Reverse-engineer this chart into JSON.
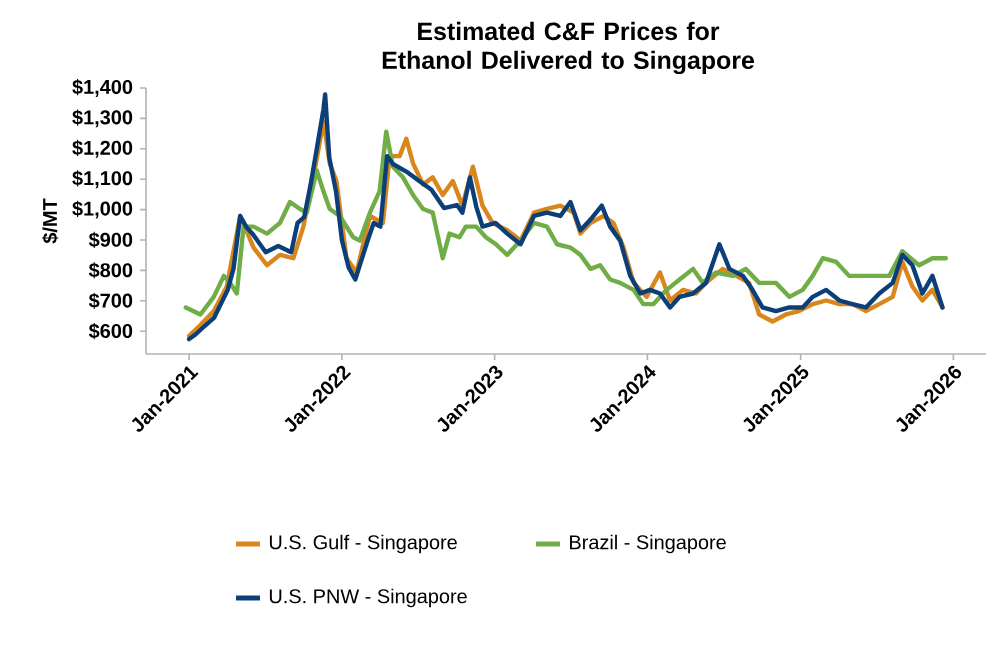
{
  "chart_data": {
    "type": "line",
    "title": "Estimated C&F Prices for Ethanol Delivered to Singapore",
    "ylabel": "$/MT",
    "xlim": [
      "2020-09-20",
      "2026-03-20"
    ],
    "ylim": [
      525,
      1400
    ],
    "xticks": [
      {
        "value": "2021-01-01",
        "label": "Jan-2021"
      },
      {
        "value": "2022-01-01",
        "label": "Jan-2022"
      },
      {
        "value": "2023-01-01",
        "label": "Jan-2023"
      },
      {
        "value": "2024-01-01",
        "label": "Jan-2024"
      },
      {
        "value": "2025-01-01",
        "label": "Jan-2025"
      },
      {
        "value": "2026-01-01",
        "label": "Jan-2026"
      }
    ],
    "yticks": [
      {
        "value": 600,
        "label": "$600"
      },
      {
        "value": 700,
        "label": "$700"
      },
      {
        "value": 800,
        "label": "$800"
      },
      {
        "value": 900,
        "label": "$900"
      },
      {
        "value": 1000,
        "label": "$1,000"
      },
      {
        "value": 1100,
        "label": "$1,100"
      },
      {
        "value": 1200,
        "label": "$1,200"
      },
      {
        "value": 1300,
        "label": "$1,300"
      },
      {
        "value": 1400,
        "label": "$1,400"
      }
    ],
    "legend": "bottom",
    "marker": "none",
    "line_style": "solid",
    "grid": false,
    "series": [
      {
        "name": "U.S. Gulf - Singapore",
        "color": "#d9861c",
        "x": [
          "2021-01-01",
          "2021-01-28",
          "2021-03-01",
          "2021-04-01",
          "2021-05-03",
          "2021-06-04",
          "2021-07-06",
          "2021-08-06",
          "2021-09-07",
          "2021-10-01",
          "2021-10-25",
          "2021-11-18",
          "2021-12-03",
          "2021-12-19",
          "2022-01-12",
          "2022-02-05",
          "2022-03-09",
          "2022-04-09",
          "2022-04-25",
          "2022-05-19",
          "2022-06-04",
          "2022-06-20",
          "2022-07-14",
          "2022-08-06",
          "2022-08-30",
          "2022-09-23",
          "2022-10-16",
          "2022-11-10",
          "2022-12-03",
          "2022-12-27",
          "2023-01-31",
          "2023-03-04",
          "2023-04-05",
          "2023-05-06",
          "2023-06-07",
          "2023-07-09",
          "2023-07-25",
          "2023-08-18",
          "2023-09-18",
          "2023-10-12",
          "2023-11-05",
          "2023-11-29",
          "2023-12-30",
          "2024-01-31",
          "2024-02-24",
          "2024-03-26",
          "2024-04-26",
          "2024-05-20",
          "2024-06-29",
          "2024-07-31",
          "2024-08-31",
          "2024-09-24",
          "2024-10-26",
          "2024-11-27",
          "2024-12-28",
          "2025-01-30",
          "2025-03-03",
          "2025-04-04",
          "2025-05-05",
          "2025-06-06",
          "2025-07-08",
          "2025-08-09",
          "2025-09-01",
          "2025-09-25",
          "2025-10-19",
          "2025-11-12",
          "2025-12-06"
        ],
        "values": [
          585,
          620,
          666,
          747,
          979,
          875,
          817,
          851,
          840,
          944,
          1106,
          1291,
          1152,
          1094,
          840,
          793,
          979,
          956,
          1176,
          1176,
          1233,
          1152,
          1083,
          1106,
          1048,
          1094,
          1013,
          1141,
          1013,
          956,
          932,
          898,
          990,
          1002,
          1013,
          990,
          921,
          956,
          979,
          956,
          875,
          759,
          713,
          793,
          701,
          736,
          724,
          759,
          805,
          782,
          759,
          655,
          632,
          655,
          666,
          689,
          701,
          689,
          689,
          666,
          689,
          713,
          828,
          747,
          701,
          736,
          678
        ]
      },
      {
        "name": "Brazil - Singapore",
        "color": "#70ad47",
        "x": [
          "2020-12-24",
          "2021-01-28",
          "2021-03-01",
          "2021-03-25",
          "2021-04-09",
          "2021-04-25",
          "2021-05-11",
          "2021-06-04",
          "2021-07-06",
          "2021-08-06",
          "2021-08-30",
          "2021-09-23",
          "2021-10-09",
          "2021-11-02",
          "2021-11-18",
          "2021-12-03",
          "2021-12-27",
          "2022-01-28",
          "2022-02-13",
          "2022-03-09",
          "2022-04-01",
          "2022-04-17",
          "2022-05-03",
          "2022-05-27",
          "2022-06-20",
          "2022-07-14",
          "2022-08-06",
          "2022-08-30",
          "2022-09-15",
          "2022-10-09",
          "2022-10-24",
          "2022-11-18",
          "2022-12-11",
          "2023-01-04",
          "2023-01-31",
          "2023-03-04",
          "2023-04-05",
          "2023-05-06",
          "2023-05-30",
          "2023-07-01",
          "2023-07-25",
          "2023-08-18",
          "2023-09-10",
          "2023-10-04",
          "2023-10-28",
          "2023-11-29",
          "2023-12-22",
          "2024-01-15",
          "2024-02-16",
          "2024-03-18",
          "2024-04-19",
          "2024-05-12",
          "2024-06-13",
          "2024-07-23",
          "2024-08-23",
          "2024-09-24",
          "2024-11-03",
          "2024-12-05",
          "2025-01-06",
          "2025-01-30",
          "2025-02-23",
          "2025-03-27",
          "2025-04-27",
          "2025-05-29",
          "2025-06-30",
          "2025-08-01",
          "2025-09-01",
          "2025-10-11",
          "2025-11-12",
          "2025-12-14"
        ],
        "values": [
          678,
          655,
          713,
          782,
          759,
          724,
          944,
          944,
          921,
          956,
          1025,
          1002,
          990,
          1129,
          1060,
          1002,
          979,
          909,
          898,
          990,
          1060,
          1256,
          1141,
          1106,
          1048,
          1002,
          990,
          840,
          921,
          909,
          944,
          944,
          909,
          886,
          851,
          898,
          956,
          944,
          886,
          875,
          851,
          805,
          817,
          770,
          759,
          736,
          689,
          689,
          736,
          770,
          805,
          759,
          793,
          782,
          805,
          759,
          759,
          713,
          736,
          782,
          840,
          828,
          782,
          782,
          782,
          782,
          863,
          817,
          840,
          840
        ]
      },
      {
        "name": "U.S. PNW - Singapore",
        "color": "#0b3f7a",
        "x": [
          "2021-01-01",
          "2021-01-17",
          "2021-01-31",
          "2021-03-02",
          "2021-04-03",
          "2021-04-17",
          "2021-05-03",
          "2021-05-19",
          "2021-06-02",
          "2021-07-03",
          "2021-08-02",
          "2021-09-02",
          "2021-09-17",
          "2021-10-03",
          "2021-10-18",
          "2021-11-02",
          "2021-11-18",
          "2021-11-22",
          "2021-12-02",
          "2021-12-18",
          "2022-01-01",
          "2022-01-17",
          "2022-02-02",
          "2022-03-04",
          "2022-03-18",
          "2022-04-03",
          "2022-04-19",
          "2022-05-03",
          "2022-06-04",
          "2022-07-04",
          "2022-08-03",
          "2022-09-02",
          "2022-10-03",
          "2022-10-16",
          "2022-11-03",
          "2022-11-18",
          "2022-12-03",
          "2023-01-03",
          "2023-01-31",
          "2023-03-04",
          "2023-04-05",
          "2023-05-06",
          "2023-06-07",
          "2023-07-01",
          "2023-07-25",
          "2023-08-18",
          "2023-09-14",
          "2023-10-04",
          "2023-10-28",
          "2023-11-21",
          "2023-12-15",
          "2024-01-07",
          "2024-01-31",
          "2024-02-24",
          "2024-03-18",
          "2024-04-19",
          "2024-05-20",
          "2024-06-21",
          "2024-07-15",
          "2024-08-16",
          "2024-09-08",
          "2024-10-02",
          "2024-11-03",
          "2024-12-05",
          "2025-01-06",
          "2025-01-30",
          "2025-03-03",
          "2025-04-04",
          "2025-05-05",
          "2025-06-06",
          "2025-07-08",
          "2025-08-09",
          "2025-09-01",
          "2025-09-25",
          "2025-10-19",
          "2025-11-12",
          "2025-12-06"
        ],
        "values": [
          574,
          590,
          608,
          645,
          735,
          805,
          979,
          940,
          920,
          860,
          880,
          860,
          956,
          975,
          1080,
          1200,
          1330,
          1379,
          1170,
          1060,
          900,
          810,
          770,
          900,
          956,
          944,
          1176,
          1150,
          1125,
          1095,
          1065,
          1005,
          1015,
          990,
          1106,
          1010,
          944,
          956,
          921,
          886,
          979,
          990,
          979,
          1025,
          932,
          967,
          1013,
          944,
          898,
          782,
          724,
          736,
          724,
          678,
          713,
          724,
          759,
          886,
          805,
          782,
          736,
          678,
          666,
          678,
          678,
          713,
          736,
          701,
          689,
          678,
          724,
          759,
          851,
          817,
          724,
          782,
          678
        ]
      }
    ]
  }
}
